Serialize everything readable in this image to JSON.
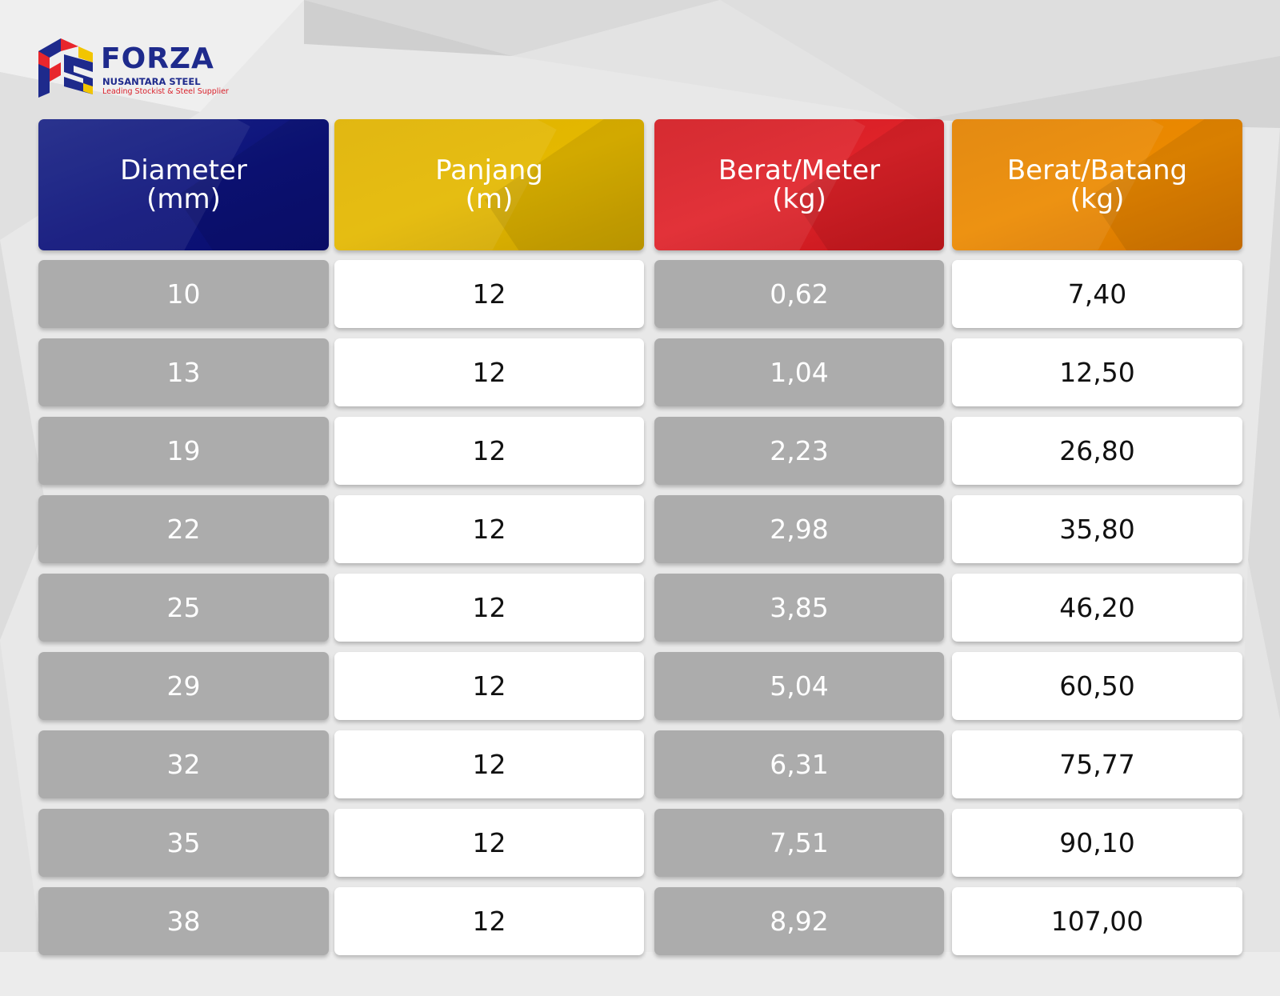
{
  "colors": {
    "diameter_header": "#0c127a",
    "panjang_header": "#e4b800",
    "berat_meter_header": "#e0232a",
    "berat_batang_header": "#ec8a00",
    "gray_cell": "#acacac",
    "white_cell": "#ffffff"
  },
  "brand": {
    "name": "FORZA",
    "subtitle": "NUSANTARA STEEL",
    "tagline": "Leading Stockist & Steel Supplier",
    "logo_icon": "fs-logo-icon"
  },
  "table": {
    "headers": [
      {
        "line1": "Diameter",
        "line2": "(mm)"
      },
      {
        "line1": "Panjang",
        "line2": "(m)"
      },
      {
        "line1": "Berat/Meter",
        "line2": "(kg)"
      },
      {
        "line1": "Berat/Batang",
        "line2": "(kg)"
      }
    ],
    "rows": [
      [
        "10",
        "12",
        "0,62",
        "7,40"
      ],
      [
        "13",
        "12",
        "1,04",
        "12,50"
      ],
      [
        "19",
        "12",
        "2,23",
        "26,80"
      ],
      [
        "22",
        "12",
        "2,98",
        "35,80"
      ],
      [
        "25",
        "12",
        "3,85",
        "46,20"
      ],
      [
        "29",
        "12",
        "5,04",
        "60,50"
      ],
      [
        "32",
        "12",
        "6,31",
        "75,77"
      ],
      [
        "35",
        "12",
        "7,51",
        "90,10"
      ],
      [
        "38",
        "12",
        "8,92",
        "107,00"
      ]
    ]
  }
}
